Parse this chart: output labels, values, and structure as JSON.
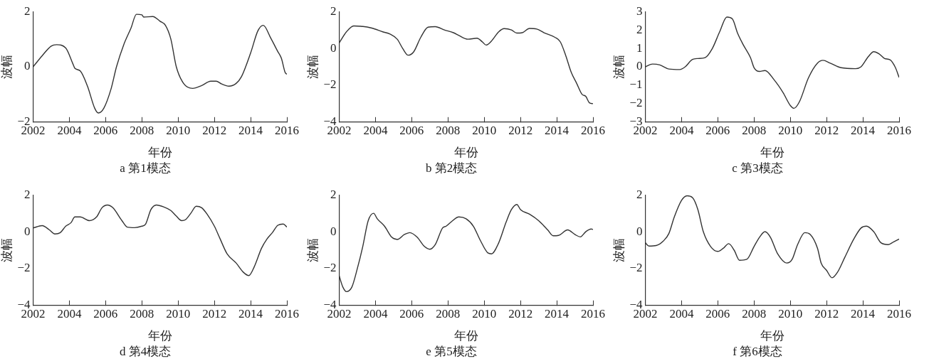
{
  "chart_data": [
    {
      "type": "line",
      "title": "a 第1模态",
      "xlabel": "年份",
      "ylabel": "波幅",
      "color": "#333333",
      "xlim": [
        2002,
        2016
      ],
      "xticks": [
        2002,
        2004,
        2006,
        2008,
        2010,
        2012,
        2014,
        2016
      ],
      "ylim": [
        -2,
        2
      ],
      "yticks": [
        -2,
        0,
        2
      ],
      "x": [
        2002,
        2002.5,
        2003,
        2003.3,
        2003.8,
        2004.2,
        2004.3,
        2004.6,
        2005,
        2005.4,
        2005.6,
        2005.9,
        2006.3,
        2006.6,
        2007,
        2007.4,
        2007.7,
        2008,
        2008.1,
        2008.6,
        2009,
        2009.3,
        2009.6,
        2009.9,
        2010.3,
        2010.8,
        2011.3,
        2011.8,
        2012.1,
        2012.4,
        2012.8,
        2013.2,
        2013.5,
        2014,
        2014.4,
        2014.7,
        2015.1,
        2015.5,
        2015.7,
        2015.9,
        2016
      ],
      "values": [
        0,
        0.4,
        0.75,
        0.8,
        0.68,
        0.1,
        -0.05,
        -0.15,
        -0.7,
        -1.5,
        -1.67,
        -1.5,
        -0.8,
        0,
        0.8,
        1.4,
        1.9,
        1.88,
        1.8,
        1.82,
        1.65,
        1.5,
        1,
        0,
        -0.6,
        -0.78,
        -0.68,
        -0.52,
        -0.52,
        -0.62,
        -0.7,
        -0.6,
        -0.35,
        0.5,
        1.3,
        1.5,
        1.05,
        0.55,
        0.3,
        -0.2,
        -0.27
      ]
    },
    {
      "type": "line",
      "title": "b 第2模态",
      "xlabel": "年份",
      "ylabel": "波幅",
      "color": "#333333",
      "xlim": [
        2002,
        2016
      ],
      "xticks": [
        2002,
        2004,
        2006,
        2008,
        2010,
        2012,
        2014,
        2016
      ],
      "ylim": [
        -4,
        2
      ],
      "yticks": [
        -4,
        -2,
        0,
        2
      ],
      "x": [
        2002,
        2002.4,
        2002.8,
        2003.2,
        2003.8,
        2004.4,
        2004.8,
        2005.2,
        2005.5,
        2005.8,
        2006.1,
        2006.5,
        2006.9,
        2007.3,
        2007.8,
        2008.3,
        2008.6,
        2009.1,
        2009.6,
        2009.9,
        2010.1,
        2010.4,
        2010.8,
        2011.1,
        2011.5,
        2011.8,
        2012.1,
        2012.5,
        2012.9,
        2013.3,
        2013.9,
        2014.2,
        2014.5,
        2014.8,
        2015.1,
        2015.4,
        2015.6,
        2015.8,
        2016
      ],
      "values": [
        0.3,
        0.9,
        1.22,
        1.2,
        1.1,
        0.9,
        0.78,
        0.5,
        0,
        -0.37,
        -0.2,
        0.6,
        1.15,
        1.18,
        1,
        0.85,
        0.7,
        0.5,
        0.55,
        0.35,
        0.18,
        0.4,
        0.9,
        1.07,
        1,
        0.83,
        0.85,
        1.08,
        1.05,
        0.85,
        0.6,
        0.35,
        -0.4,
        -1.3,
        -1.9,
        -2.5,
        -2.6,
        -2.95,
        -3
      ]
    },
    {
      "type": "line",
      "title": "c 第3模态",
      "xlabel": "年份",
      "ylabel": "波幅",
      "color": "#333333",
      "xlim": [
        2002,
        2016
      ],
      "xticks": [
        2002,
        2004,
        2006,
        2008,
        2010,
        2012,
        2014,
        2016
      ],
      "ylim": [
        -3,
        3
      ],
      "yticks": [
        -3,
        -2,
        -1,
        0,
        1,
        2,
        3
      ],
      "x": [
        2002,
        2002.4,
        2002.8,
        2003.3,
        2003.9,
        2004.2,
        2004.6,
        2004.9,
        2005.3,
        2005.7,
        2006.1,
        2006.5,
        2006.8,
        2007.1,
        2007.4,
        2007.8,
        2008,
        2008.3,
        2008.6,
        2009.1,
        2009.6,
        2010,
        2010.2,
        2010.5,
        2011,
        2011.5,
        2011.8,
        2012.2,
        2012.8,
        2013.6,
        2013.9,
        2014.3,
        2014.6,
        2014.9,
        2015.2,
        2015.5,
        2015.8,
        2016
      ],
      "values": [
        0,
        0.15,
        0.1,
        -0.12,
        -0.15,
        0,
        0.4,
        0.45,
        0.5,
        1,
        1.9,
        2.7,
        2.6,
        1.8,
        1.2,
        0.5,
        -0.05,
        -0.25,
        -0.2,
        -0.7,
        -1.4,
        -2.1,
        -2.25,
        -1.9,
        -0.6,
        0.2,
        0.35,
        0.2,
        -0.05,
        -0.1,
        0,
        0.55,
        0.82,
        0.7,
        0.45,
        0.38,
        -0.05,
        -0.58
      ]
    },
    {
      "type": "line",
      "title": "d 第4模态",
      "xlabel": "年份",
      "ylabel": "波幅",
      "color": "#333333",
      "xlim": [
        2002,
        2016
      ],
      "xticks": [
        2002,
        2004,
        2006,
        2008,
        2010,
        2012,
        2014,
        2016
      ],
      "ylim": [
        -4,
        2
      ],
      "yticks": [
        -4,
        -2,
        0,
        2
      ],
      "x": [
        2002,
        2002.5,
        2002.9,
        2003.2,
        2003.5,
        2003.8,
        2004.1,
        2004.3,
        2004.6,
        2005.1,
        2005.5,
        2005.8,
        2006.1,
        2006.4,
        2006.9,
        2007.2,
        2007.6,
        2008,
        2008.2,
        2008.5,
        2008.8,
        2009.2,
        2009.6,
        2009.9,
        2010.2,
        2010.4,
        2010.7,
        2011,
        2011.3,
        2011.6,
        2012,
        2012.3,
        2012.7,
        2013.2,
        2013.6,
        2013.9,
        2014.2,
        2014.6,
        2014.9,
        2015.2,
        2015.5,
        2015.8,
        2016
      ],
      "values": [
        0.2,
        0.33,
        0.1,
        -0.12,
        -0.05,
        0.3,
        0.5,
        0.8,
        0.8,
        0.6,
        0.8,
        1.3,
        1.45,
        1.3,
        0.6,
        0.25,
        0.22,
        0.3,
        0.4,
        1.2,
        1.45,
        1.35,
        1.15,
        0.85,
        0.6,
        0.65,
        1,
        1.38,
        1.3,
        0.95,
        0.3,
        -0.35,
        -1.2,
        -1.7,
        -2.2,
        -2.38,
        -1.9,
        -0.9,
        -0.4,
        -0.05,
        0.35,
        0.42,
        0.25
      ]
    },
    {
      "type": "line",
      "title": "e 第5模态",
      "xlabel": "年份",
      "ylabel": "波幅",
      "color": "#333333",
      "xlim": [
        2002,
        2016
      ],
      "xticks": [
        2002,
        2004,
        2006,
        2008,
        2010,
        2012,
        2014,
        2016
      ],
      "ylim": [
        -4,
        2
      ],
      "yticks": [
        -4,
        -2,
        0,
        2
      ],
      "x": [
        2002,
        2002.2,
        2002.4,
        2002.7,
        2003,
        2003.3,
        2003.6,
        2003.9,
        2004.1,
        2004.5,
        2004.9,
        2005.2,
        2005.6,
        2005.9,
        2006.3,
        2006.7,
        2007,
        2007.3,
        2007.7,
        2007.9,
        2008.2,
        2008.6,
        2009,
        2009.4,
        2009.8,
        2010.2,
        2010.4,
        2010.8,
        2011.2,
        2011.5,
        2011.8,
        2012,
        2012.5,
        2013,
        2013.5,
        2013.8,
        2014.1,
        2014.6,
        2015,
        2015.3,
        2015.6,
        2015.9,
        2016
      ],
      "values": [
        -2.4,
        -3,
        -3.25,
        -3,
        -2,
        -0.8,
        0.6,
        1,
        0.7,
        0.3,
        -0.3,
        -0.42,
        -0.15,
        -0.05,
        -0.3,
        -0.8,
        -0.95,
        -0.7,
        0.2,
        0.3,
        0.55,
        0.8,
        0.7,
        0.3,
        -0.5,
        -1.15,
        -1.2,
        -0.6,
        0.5,
        1.2,
        1.48,
        1.2,
        0.95,
        0.6,
        0.1,
        -0.22,
        -0.2,
        0.1,
        -0.15,
        -0.28,
        0,
        0.15,
        0.12
      ]
    },
    {
      "type": "line",
      "title": "f 第6模态",
      "xlabel": "年份",
      "ylabel": "波幅",
      "color": "#333333",
      "xlim": [
        2002,
        2016
      ],
      "xticks": [
        2002,
        2004,
        2006,
        2008,
        2010,
        2012,
        2014,
        2016
      ],
      "ylim": [
        -4,
        2
      ],
      "yticks": [
        -4,
        -2,
        0,
        2
      ],
      "x": [
        2002,
        2002.2,
        2002.6,
        2003,
        2003.3,
        2003.6,
        2004,
        2004.3,
        2004.6,
        2004.9,
        2005.2,
        2005.6,
        2006,
        2006.3,
        2006.6,
        2006.9,
        2007.2,
        2007.6,
        2008,
        2008.3,
        2008.6,
        2008.9,
        2009.3,
        2009.8,
        2010.1,
        2010.4,
        2010.8,
        2011.1,
        2011.5,
        2011.7,
        2012,
        2012.3,
        2012.6,
        2013,
        2013.5,
        2013.9,
        2014.2,
        2014.6,
        2015,
        2015.4,
        2015.7,
        2016
      ],
      "values": [
        -0.6,
        -0.78,
        -0.75,
        -0.5,
        -0.1,
        0.8,
        1.7,
        1.95,
        1.85,
        1.2,
        0,
        -0.8,
        -1.07,
        -0.9,
        -0.65,
        -1,
        -1.55,
        -1.5,
        -0.8,
        -0.3,
        0,
        -0.3,
        -1.2,
        -1.7,
        -1.5,
        -0.7,
        -0.05,
        -0.15,
        -0.9,
        -1.7,
        -2.1,
        -2.5,
        -2.2,
        -1.4,
        -0.4,
        0.2,
        0.3,
        0,
        -0.6,
        -0.7,
        -0.55,
        -0.4
      ]
    }
  ]
}
